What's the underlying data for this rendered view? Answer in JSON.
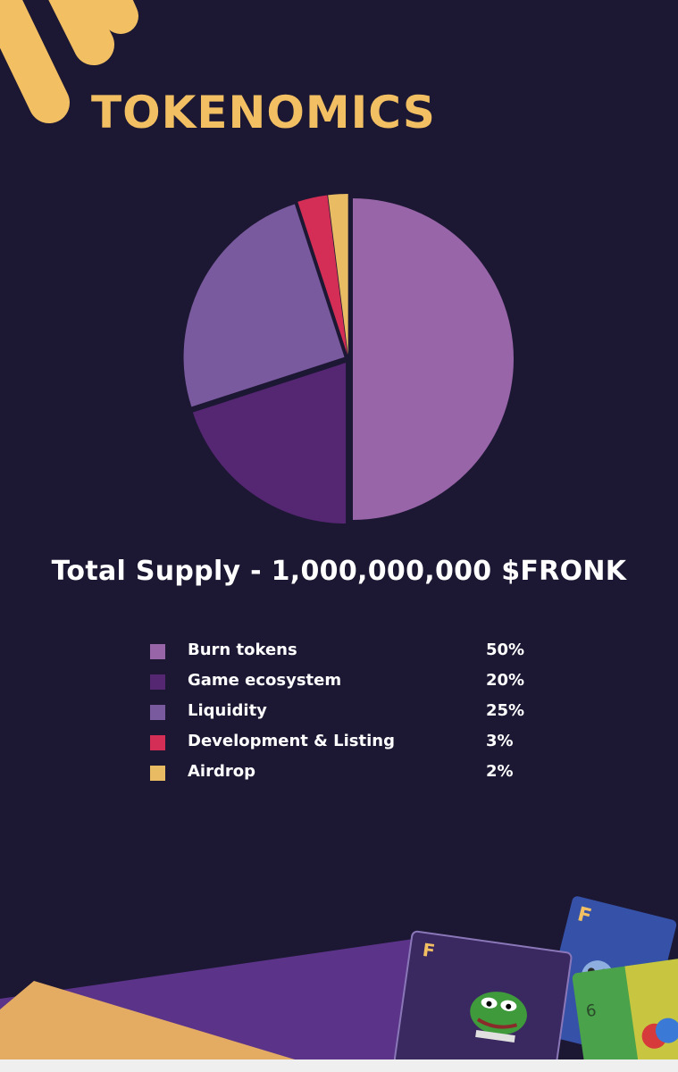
{
  "header": {
    "title": "TOKENOMICS"
  },
  "supply": {
    "text": "Total Supply - 1,000,000,000 $FRONK"
  },
  "colors": {
    "background": "#1c1733",
    "accent": "#f2c063"
  },
  "chart_data": {
    "type": "pie",
    "start": "12 o'clock, clockwise",
    "categories": [
      "Burn tokens",
      "Game ecosystem",
      "Liquidity",
      "Development & Listing",
      "Airdrop"
    ],
    "values": [
      50,
      20,
      25,
      3,
      2
    ],
    "display_values": [
      "50%",
      "20%",
      "25%",
      "3%",
      "2%"
    ],
    "colors": [
      "#9765a8",
      "#552672",
      "#7a5a9e",
      "#d52e56",
      "#e9bb62"
    ],
    "legend_placement": "below"
  },
  "cards": [
    {
      "letter": "F",
      "icon": "frog-meme-icon"
    },
    {
      "letter": "F",
      "icon": "bear-character-icon"
    },
    {
      "letter": "6",
      "icon": "clown-frog-icon"
    }
  ]
}
